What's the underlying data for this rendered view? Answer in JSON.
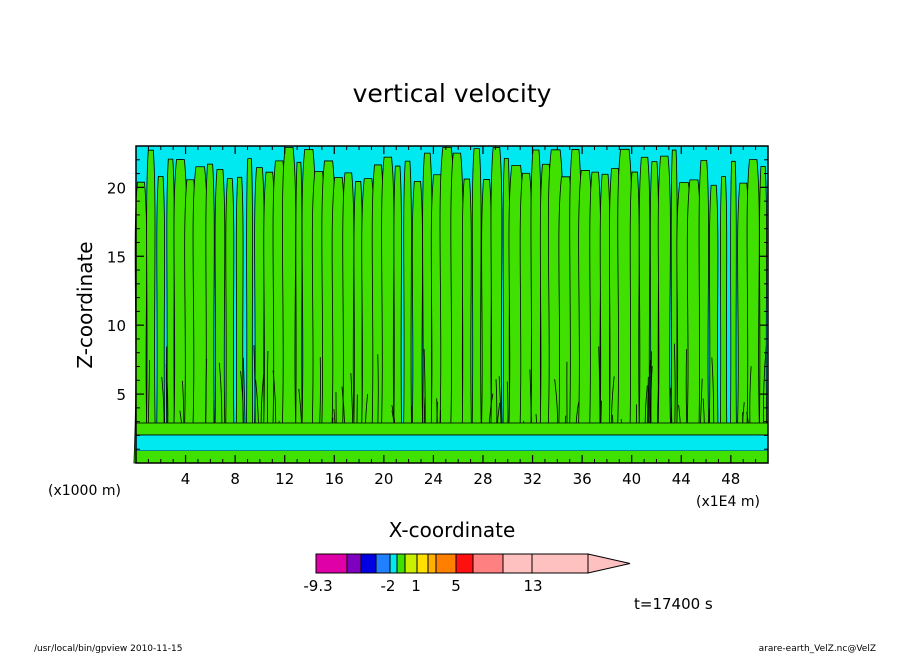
{
  "chart_data": {
    "type": "heatmap",
    "title": "vertical velocity",
    "xlabel": "X-coordinate",
    "ylabel": "Z-coordinate",
    "x_unit_left": "(x1000 m)",
    "x_unit_right": "(x1E4 m)",
    "xlim": [
      0,
      51
    ],
    "ylim": [
      0,
      23
    ],
    "xticks": [
      "4",
      "8",
      "12",
      "16",
      "20",
      "24",
      "28",
      "32",
      "36",
      "40",
      "44",
      "48"
    ],
    "yticks": [
      "5",
      "10",
      "15",
      "20"
    ],
    "xtick_values": [
      4,
      8,
      12,
      16,
      20,
      24,
      28,
      32,
      36,
      40,
      44,
      48
    ],
    "ytick_values": [
      5,
      10,
      15,
      20
    ],
    "colorbar": {
      "colors": [
        "#e000a8",
        "#8000c0",
        "#0000e0",
        "#2080ff",
        "#00e8f0",
        "#40e000",
        "#c8f000",
        "#ffe000",
        "#ffb000",
        "#ff8000",
        "#ff1010",
        "#ff8080",
        "#ffc0c0",
        "#ffc0c0"
      ],
      "labels": [
        "-9.3",
        "-2",
        "1",
        "5",
        "13"
      ]
    },
    "time_label": "t=17400 s",
    "field_colors": {
      "negative": "#00e8f0",
      "positive": "#40e000",
      "line": "#000000"
    }
  },
  "footer": {
    "left": "/usr/local/bin/gpview   2010-11-15",
    "right": "arare-earth_VelZ.nc@VelZ"
  }
}
